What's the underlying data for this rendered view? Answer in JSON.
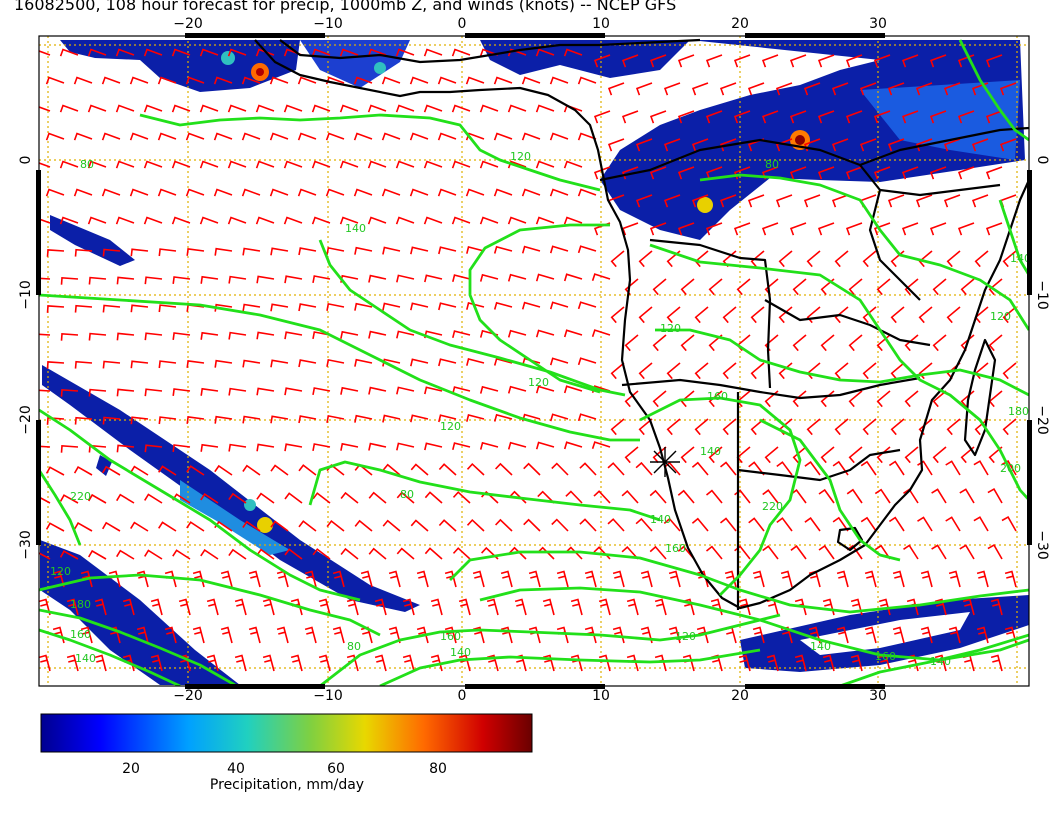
{
  "title": "16082500, 108 hour forecast for precip, 1000mb Z, and winds (knots) -- NCEP GFS",
  "map": {
    "lon_min": -30,
    "lon_max": 41,
    "lat_min": -41,
    "lat_max": 11,
    "top_ticks": [
      "−20",
      "−10",
      "0",
      "10",
      "20",
      "30"
    ],
    "bottom_ticks": [
      "−20",
      "−10",
      "0",
      "10",
      "20",
      "30"
    ],
    "left_ticks": [
      "0",
      "−10",
      "−20",
      "−30"
    ],
    "right_ticks": [
      "0",
      "−10",
      "−20",
      "−30"
    ],
    "contour_labels": [
      "120",
      "140",
      "80",
      "120",
      "120",
      "220",
      "180",
      "160",
      "140",
      "120",
      "160",
      "140",
      "80",
      "80",
      "160",
      "140",
      "120",
      "220",
      "140",
      "160",
      "180",
      "200",
      "140",
      "120",
      "80",
      "160",
      "140",
      "120",
      "140"
    ],
    "colors": {
      "wind_barbs": "#ff0000",
      "contours": "#22e01a",
      "coastline": "#000000",
      "grid": "#e0b000",
      "precip": "#00008f"
    }
  },
  "colorbar": {
    "ticks": [
      "20",
      "40",
      "60",
      "80"
    ],
    "label": "Precipitation, mm/day",
    "min": 0,
    "max": 100
  }
}
